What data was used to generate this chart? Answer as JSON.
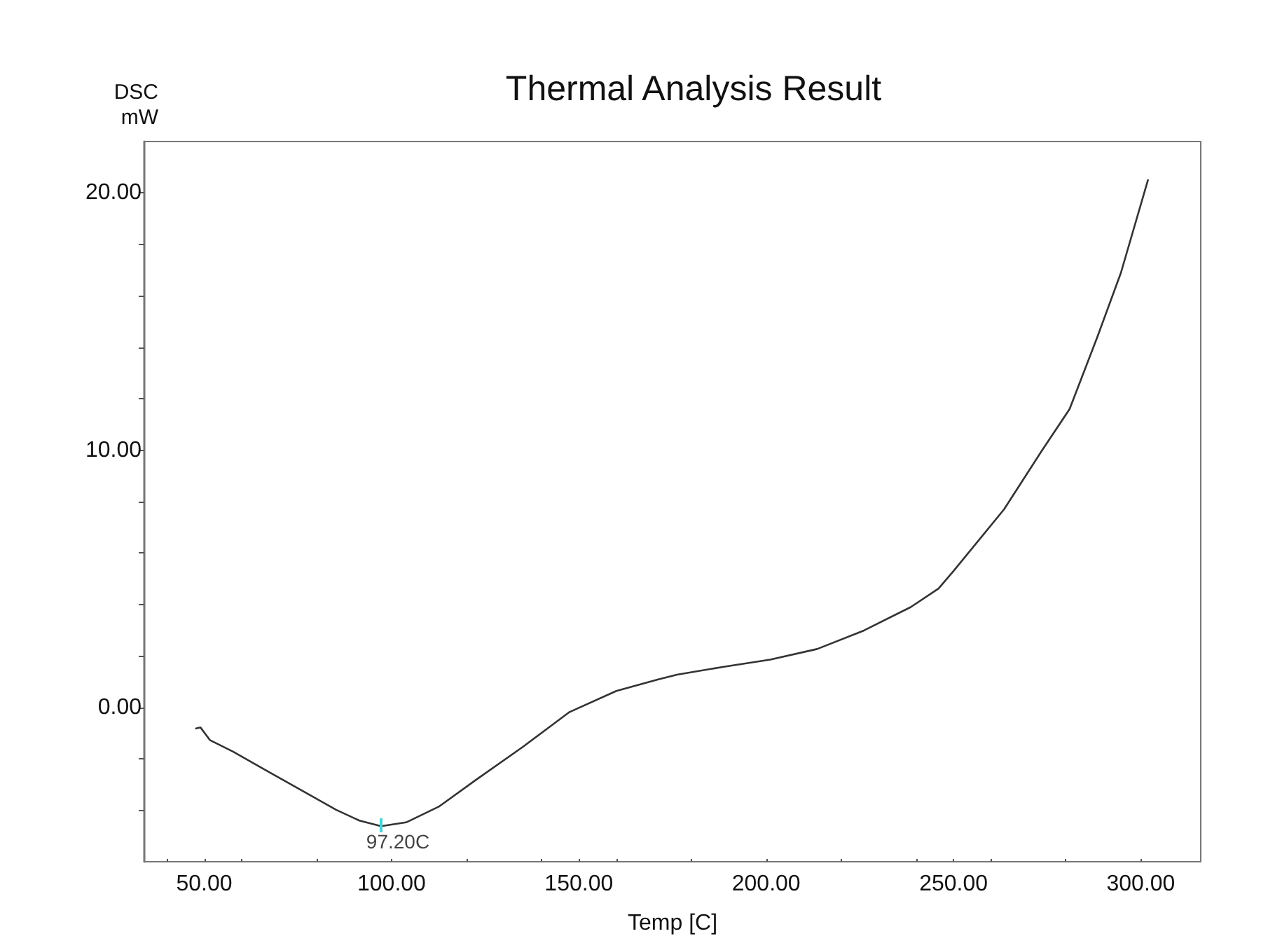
{
  "chart_data": {
    "type": "line",
    "title": "Thermal Analysis Result",
    "xlabel": "Temp [C]",
    "ylabel": "DSC\nmW",
    "annotations": [
      {
        "text": "97.20C",
        "x": 97.2,
        "y": -4.62
      }
    ],
    "x": [
      47.8,
      49,
      51.5,
      57.7,
      66.5,
      76.4,
      85.2,
      91.4,
      97.2,
      103.9,
      112.6,
      122.6,
      135,
      147.5,
      160,
      171.2,
      176.2,
      188.7,
      201.1,
      213.6,
      226.1,
      238.6,
      246,
      250,
      263.5,
      273.5,
      281,
      288.4,
      294.7,
      301.9
    ],
    "series": [
      {
        "color": "#333333",
        "values": [
          -0.82,
          -0.78,
          -1.27,
          -1.72,
          -2.45,
          -3.26,
          -3.98,
          -4.4,
          -4.62,
          -4.47,
          -3.86,
          -2.81,
          -1.54,
          -0.18,
          0.64,
          1.09,
          1.27,
          1.58,
          1.86,
          2.27,
          2.99,
          3.9,
          4.62,
          5.3,
          7.7,
          9.96,
          11.6,
          14.4,
          16.9,
          20.5
        ]
      }
    ],
    "xlim": [
      34,
      316
    ],
    "xticks": [
      {
        "value": 40,
        "label": null
      },
      {
        "value": 50,
        "label": "50.00"
      },
      {
        "value": 60,
        "label": null
      },
      {
        "value": 80,
        "label": null
      },
      {
        "value": 100,
        "label": "100.00"
      },
      {
        "value": 120,
        "label": null
      },
      {
        "value": 140,
        "label": null
      },
      {
        "value": 150,
        "label": "150.00"
      },
      {
        "value": 160,
        "label": null
      },
      {
        "value": 180,
        "label": null
      },
      {
        "value": 200,
        "label": "200.00"
      },
      {
        "value": 220,
        "label": null
      },
      {
        "value": 240,
        "label": null
      },
      {
        "value": 250,
        "label": "250.00"
      },
      {
        "value": 260,
        "label": null
      },
      {
        "value": 280,
        "label": null
      },
      {
        "value": 300,
        "label": "300.00"
      }
    ],
    "ylim": [
      -6,
      22
    ],
    "yticks": [
      {
        "value": -4,
        "label": null
      },
      {
        "value": -2,
        "label": null
      },
      {
        "value": 0,
        "label": "0.00"
      },
      {
        "value": 2,
        "label": null
      },
      {
        "value": 4,
        "label": null
      },
      {
        "value": 6,
        "label": null
      },
      {
        "value": 8,
        "label": null
      },
      {
        "value": 10,
        "label": "10.00"
      },
      {
        "value": 12,
        "label": null
      },
      {
        "value": 14,
        "label": null
      },
      {
        "value": 16,
        "label": null
      },
      {
        "value": 18,
        "label": null
      },
      {
        "value": 20,
        "label": "20.00"
      }
    ],
    "grid": false,
    "marker": "none",
    "line_style": "solid"
  }
}
